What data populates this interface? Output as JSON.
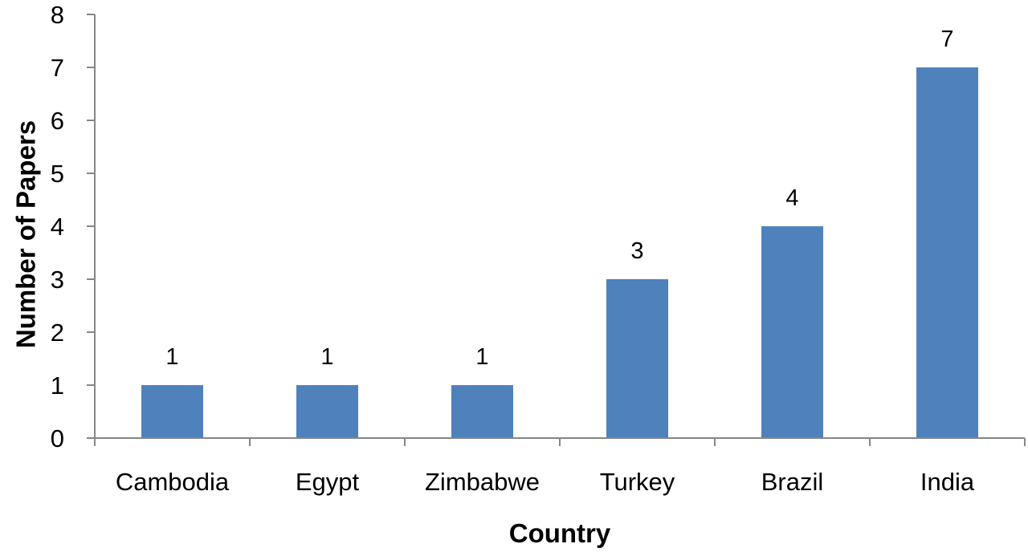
{
  "chart_data": {
    "type": "bar",
    "categories": [
      "Cambodia",
      "Egypt",
      "Zimbabwe",
      "Turkey",
      "Brazil",
      "India"
    ],
    "values": [
      1,
      1,
      1,
      3,
      4,
      7
    ],
    "data_labels": [
      "1",
      "1",
      "1",
      "3",
      "4",
      "7"
    ],
    "xlabel": "Country",
    "ylabel": "Number of Papers",
    "ylim": [
      0,
      8
    ],
    "yticks": [
      0,
      1,
      2,
      3,
      4,
      5,
      6,
      7,
      8
    ],
    "grid": false,
    "legend": "none",
    "colors": {
      "bar": "#4f81bd",
      "axis": "#868686",
      "text": "#000000"
    }
  }
}
